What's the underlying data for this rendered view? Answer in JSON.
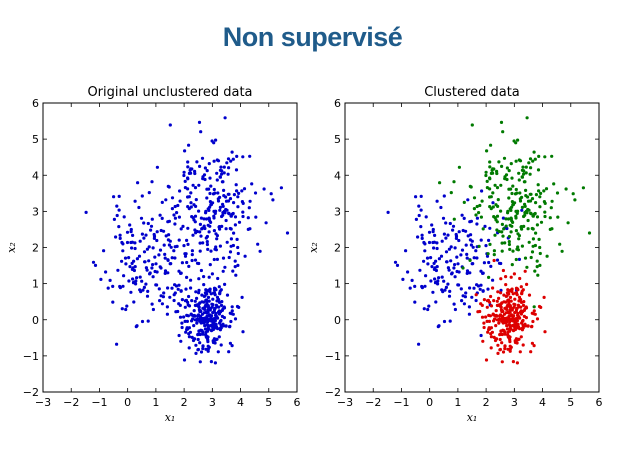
{
  "slide": {
    "title": "Non supervisé"
  },
  "colors": {
    "title": "#1f5b8a",
    "blue": "#0000cc",
    "green": "#007a00",
    "red": "#dd0000"
  },
  "chart_data": [
    {
      "type": "scatter",
      "title": "Original unclustered data",
      "xlabel": "x₁",
      "ylabel": "x₂",
      "xlim": [
        -3,
        6
      ],
      "ylim": [
        -2,
        6
      ],
      "xticks": [
        "−3",
        "−2",
        "−1",
        "0",
        "1",
        "2",
        "3",
        "4",
        "5",
        "6"
      ],
      "yticks": [
        "−2",
        "−1",
        "0",
        "1",
        "2",
        "3",
        "4",
        "5",
        "6"
      ],
      "grid": false,
      "legend": "none",
      "series": [
        {
          "color": "blue",
          "clusters": [
            {
              "center": [
                0.8,
                1.6
              ],
              "spread": [
                0.85,
                0.8
              ],
              "count": 200
            },
            {
              "center": [
                3.0,
                3.2
              ],
              "spread": [
                0.85,
                0.85
              ],
              "count": 250
            },
            {
              "center": [
                2.8,
                0.05
              ],
              "spread": [
                0.45,
                0.5
              ],
              "count": 300
            }
          ]
        }
      ]
    },
    {
      "type": "scatter",
      "title": "Clustered data",
      "xlabel": "x₁",
      "ylabel": "x₂",
      "xlim": [
        -3,
        6
      ],
      "ylim": [
        -2,
        6
      ],
      "xticks": [
        "−3",
        "−2",
        "−1",
        "0",
        "1",
        "2",
        "3",
        "4",
        "5",
        "6"
      ],
      "yticks": [
        "−2",
        "−1",
        "0",
        "1",
        "2",
        "3",
        "4",
        "5",
        "6"
      ],
      "grid": false,
      "legend": "none",
      "series": [
        {
          "color": "blue",
          "clusters": [
            {
              "center": [
                0.8,
                1.6
              ],
              "spread": [
                0.85,
                0.8
              ],
              "count": 200
            }
          ]
        },
        {
          "color": "green",
          "clusters": [
            {
              "center": [
                3.0,
                3.2
              ],
              "spread": [
                0.85,
                0.85
              ],
              "count": 250
            }
          ]
        },
        {
          "color": "red",
          "clusters": [
            {
              "center": [
                2.8,
                0.05
              ],
              "spread": [
                0.45,
                0.5
              ],
              "count": 300
            }
          ]
        }
      ]
    }
  ]
}
